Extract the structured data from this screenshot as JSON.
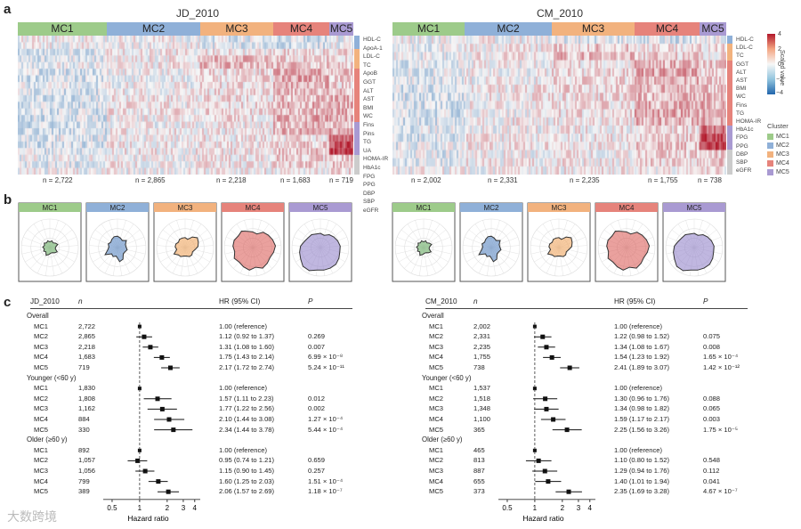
{
  "panel_labels": {
    "a": "a",
    "b": "b",
    "c": "c"
  },
  "heatmaps": [
    {
      "title": "JD_2010",
      "clusters": [
        "MC1",
        "MC2",
        "MC3",
        "MC4",
        "MC5"
      ],
      "n_labels": [
        "n = 2,722",
        "n = 2,865",
        "n = 2,218",
        "n = 1,683",
        "n = 719"
      ]
    },
    {
      "title": "CM_2010",
      "clusters": [
        "MC1",
        "MC2",
        "MC3",
        "MC4",
        "MC5"
      ],
      "n_labels": [
        "n = 2,002",
        "n = 2,331",
        "n = 2,235",
        "n = 1,755",
        "n = 738"
      ]
    }
  ],
  "variables_left": [
    "HDL-C",
    "ApoA-1",
    "LDL-C",
    "TC",
    "ApoB",
    "GGT",
    "ALT",
    "AST",
    "BMI",
    "WC",
    "Fins",
    "Pins",
    "TG",
    "UA",
    "HOMA-IR",
    "HbA1c",
    "FPG",
    "PPG",
    "DBP",
    "SBP",
    "eGFR"
  ],
  "variables_right": [
    "HDL-C",
    "LDL-C",
    "TC",
    "GGT",
    "ALT",
    "AST",
    "BMI",
    "WC",
    "Fins",
    "TG",
    "HOMA-IR",
    "HbA1c",
    "FPG",
    "PPG",
    "DBP",
    "SBP",
    "eGFR"
  ],
  "colors": {
    "MC1": "#9dcb8a",
    "MC2": "#8fb0d8",
    "MC3": "#f2b27e",
    "MC4": "#e6837b",
    "MC5": "#a99ad2",
    "high": "#b2182b",
    "low": "#2166ac"
  },
  "scale_legend": {
    "title": "Scaled value",
    "ticks": [
      "4",
      "2",
      "0",
      "−2",
      "−4"
    ]
  },
  "cluster_legend": {
    "title": "Cluster",
    "items": [
      "MC1",
      "MC2",
      "MC3",
      "MC4",
      "MC5"
    ]
  },
  "forest": [
    {
      "title": "JD_2010",
      "col_n": "n",
      "col_hr": "HR (95% CI)",
      "col_p": "P",
      "axis_label": "Hazard ratio",
      "ticks": [
        "0.5",
        "1",
        "2",
        "3",
        "4"
      ],
      "sections": [
        {
          "name": "Overall",
          "rows": [
            {
              "label": "MC1",
              "n": "2,722",
              "hr": 1.0,
              "lo": 1.0,
              "hi": 1.0,
              "text": "1.00 (reference)",
              "p": ""
            },
            {
              "label": "MC2",
              "n": "2,865",
              "hr": 1.12,
              "lo": 0.92,
              "hi": 1.37,
              "text": "1.12 (0.92 to 1.37)",
              "p": "0.269"
            },
            {
              "label": "MC3",
              "n": "2,218",
              "hr": 1.31,
              "lo": 1.08,
              "hi": 1.6,
              "text": "1.31 (1.08 to 1.60)",
              "p": "0.007"
            },
            {
              "label": "MC4",
              "n": "1,683",
              "hr": 1.75,
              "lo": 1.43,
              "hi": 2.14,
              "text": "1.75 (1.43 to 2.14)",
              "p": "6.99 × 10⁻⁸"
            },
            {
              "label": "MC5",
              "n": "719",
              "hr": 2.17,
              "lo": 1.72,
              "hi": 2.74,
              "text": "2.17 (1.72 to 2.74)",
              "p": "5.24 × 10⁻¹¹"
            }
          ]
        },
        {
          "name": "Younger (<60 y)",
          "rows": [
            {
              "label": "MC1",
              "n": "1,830",
              "hr": 1.0,
              "lo": 1.0,
              "hi": 1.0,
              "text": "1.00 (reference)",
              "p": ""
            },
            {
              "label": "MC2",
              "n": "1,808",
              "hr": 1.57,
              "lo": 1.11,
              "hi": 2.23,
              "text": "1.57 (1.11 to 2.23)",
              "p": "0.012"
            },
            {
              "label": "MC3",
              "n": "1,162",
              "hr": 1.77,
              "lo": 1.22,
              "hi": 2.56,
              "text": "1.77 (1.22 to 2.56)",
              "p": "0.002"
            },
            {
              "label": "MC4",
              "n": "884",
              "hr": 2.1,
              "lo": 1.44,
              "hi": 3.08,
              "text": "2.10 (1.44 to 3.08)",
              "p": "1.27 × 10⁻⁴"
            },
            {
              "label": "MC5",
              "n": "330",
              "hr": 2.34,
              "lo": 1.44,
              "hi": 3.78,
              "text": "2.34 (1.44 to 3.78)",
              "p": "5.44 × 10⁻⁴"
            }
          ]
        },
        {
          "name": "Older (≥60 y)",
          "rows": [
            {
              "label": "MC1",
              "n": "892",
              "hr": 1.0,
              "lo": 1.0,
              "hi": 1.0,
              "text": "1.00 (reference)",
              "p": ""
            },
            {
              "label": "MC2",
              "n": "1,057",
              "hr": 0.95,
              "lo": 0.74,
              "hi": 1.21,
              "text": "0.95 (0.74 to 1.21)",
              "p": "0.659"
            },
            {
              "label": "MC3",
              "n": "1,056",
              "hr": 1.15,
              "lo": 0.9,
              "hi": 1.45,
              "text": "1.15 (0.90 to 1.45)",
              "p": "0.257"
            },
            {
              "label": "MC4",
              "n": "799",
              "hr": 1.6,
              "lo": 1.25,
              "hi": 2.03,
              "text": "1.60 (1.25 to 2.03)",
              "p": "1.51 × 10⁻⁴"
            },
            {
              "label": "MC5",
              "n": "389",
              "hr": 2.06,
              "lo": 1.57,
              "hi": 2.69,
              "text": "2.06 (1.57 to 2.69)",
              "p": "1.18 × 10⁻⁷"
            }
          ]
        }
      ]
    },
    {
      "title": "CM_2010",
      "col_n": "n",
      "col_hr": "HR (95% CI)",
      "col_p": "P",
      "axis_label": "Hazard ratio",
      "ticks": [
        "0.5",
        "1",
        "2",
        "3",
        "4"
      ],
      "sections": [
        {
          "name": "Overall",
          "rows": [
            {
              "label": "MC1",
              "n": "2,002",
              "hr": 1.0,
              "lo": 1.0,
              "hi": 1.0,
              "text": "1.00 (reference)",
              "p": ""
            },
            {
              "label": "MC2",
              "n": "2,331",
              "hr": 1.22,
              "lo": 0.98,
              "hi": 1.52,
              "text": "1.22 (0.98 to 1.52)",
              "p": "0.075"
            },
            {
              "label": "MC3",
              "n": "2,235",
              "hr": 1.34,
              "lo": 1.08,
              "hi": 1.67,
              "text": "1.34 (1.08 to 1.67)",
              "p": "0.008"
            },
            {
              "label": "MC4",
              "n": "1,755",
              "hr": 1.54,
              "lo": 1.23,
              "hi": 1.92,
              "text": "1.54 (1.23 to 1.92)",
              "p": "1.65 × 10⁻⁴"
            },
            {
              "label": "MC5",
              "n": "738",
              "hr": 2.41,
              "lo": 1.89,
              "hi": 3.07,
              "text": "2.41 (1.89 to 3.07)",
              "p": "1.42 × 10⁻¹²"
            }
          ]
        },
        {
          "name": "Younger (<60 y)",
          "rows": [
            {
              "label": "MC1",
              "n": "1,537",
              "hr": 1.0,
              "lo": 1.0,
              "hi": 1.0,
              "text": "1.00 (reference)",
              "p": ""
            },
            {
              "label": "MC2",
              "n": "1,518",
              "hr": 1.3,
              "lo": 0.96,
              "hi": 1.76,
              "text": "1.30 (0.96 to 1.76)",
              "p": "0.088"
            },
            {
              "label": "MC3",
              "n": "1,348",
              "hr": 1.34,
              "lo": 0.98,
              "hi": 1.82,
              "text": "1.34 (0.98 to 1.82)",
              "p": "0.065"
            },
            {
              "label": "MC4",
              "n": "1,100",
              "hr": 1.59,
              "lo": 1.17,
              "hi": 2.17,
              "text": "1.59 (1.17 to 2.17)",
              "p": "0.003"
            },
            {
              "label": "MC5",
              "n": "365",
              "hr": 2.25,
              "lo": 1.56,
              "hi": 3.26,
              "text": "2.25 (1.56 to 3.26)",
              "p": "1.75 × 10⁻⁵"
            }
          ]
        },
        {
          "name": "Older (≥60 y)",
          "rows": [
            {
              "label": "MC1",
              "n": "465",
              "hr": 1.0,
              "lo": 1.0,
              "hi": 1.0,
              "text": "1.00 (reference)",
              "p": ""
            },
            {
              "label": "MC2",
              "n": "813",
              "hr": 1.1,
              "lo": 0.8,
              "hi": 1.52,
              "text": "1.10 (0.80 to 1.52)",
              "p": "0.548"
            },
            {
              "label": "MC3",
              "n": "887",
              "hr": 1.29,
              "lo": 0.94,
              "hi": 1.76,
              "text": "1.29 (0.94 to 1.76)",
              "p": "0.112"
            },
            {
              "label": "MC4",
              "n": "655",
              "hr": 1.4,
              "lo": 1.01,
              "hi": 1.94,
              "text": "1.40 (1.01 to 1.94)",
              "p": "0.041"
            },
            {
              "label": "MC5",
              "n": "373",
              "hr": 2.35,
              "lo": 1.69,
              "hi": 3.28,
              "text": "2.35 (1.69 to 3.28)",
              "p": "4.67 × 10⁻⁷"
            }
          ]
        }
      ]
    }
  ],
  "watermark": "大数跨境"
}
